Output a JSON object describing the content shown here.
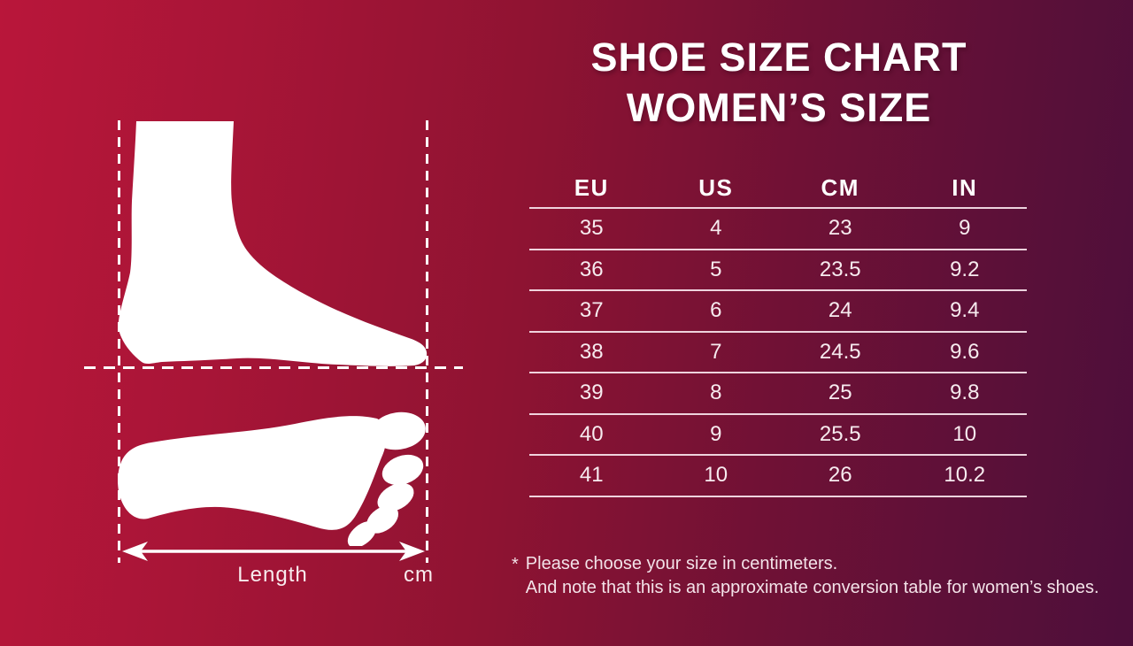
{
  "title": {
    "line1": "SHOE SIZE CHART",
    "line2": "WOMEN’S SIZE"
  },
  "table": {
    "headers": [
      "EU",
      "US",
      "CM",
      "IN"
    ],
    "rows": [
      [
        "35",
        "4",
        "23",
        "9"
      ],
      [
        "36",
        "5",
        "23.5",
        "9.2"
      ],
      [
        "37",
        "6",
        "24",
        "9.4"
      ],
      [
        "38",
        "7",
        "24.5",
        "9.6"
      ],
      [
        "39",
        "8",
        "25",
        "9.8"
      ],
      [
        "40",
        "9",
        "25.5",
        "10"
      ],
      [
        "41",
        "10",
        "26",
        "10.2"
      ]
    ]
  },
  "footnote": {
    "marker": "*",
    "line1": "Please choose your size in centimeters.",
    "line2": "And note that this is an approximate conversion table for women’s shoes."
  },
  "diagram": {
    "length_label": "Length",
    "unit_label": "cm"
  },
  "colors": {
    "background_left": "#b9163a",
    "background_right": "#4d0e3a",
    "foreground": "#ffffff",
    "table_line": "#f9e4eb"
  },
  "chart_data": {
    "type": "table",
    "title": "SHOE SIZE CHART WOMEN’S SIZE",
    "columns": [
      "EU",
      "US",
      "CM",
      "IN"
    ],
    "rows": [
      [
        35,
        4,
        23,
        9
      ],
      [
        36,
        5,
        23.5,
        9.2
      ],
      [
        37,
        6,
        24,
        9.4
      ],
      [
        38,
        7,
        24.5,
        9.6
      ],
      [
        39,
        8,
        25,
        9.8
      ],
      [
        40,
        9,
        25.5,
        10
      ],
      [
        41,
        10,
        26,
        10.2
      ]
    ],
    "notes": [
      "Please choose your size in centimeters.",
      "And note that this is an approximate conversion table for women’s shoes."
    ]
  }
}
